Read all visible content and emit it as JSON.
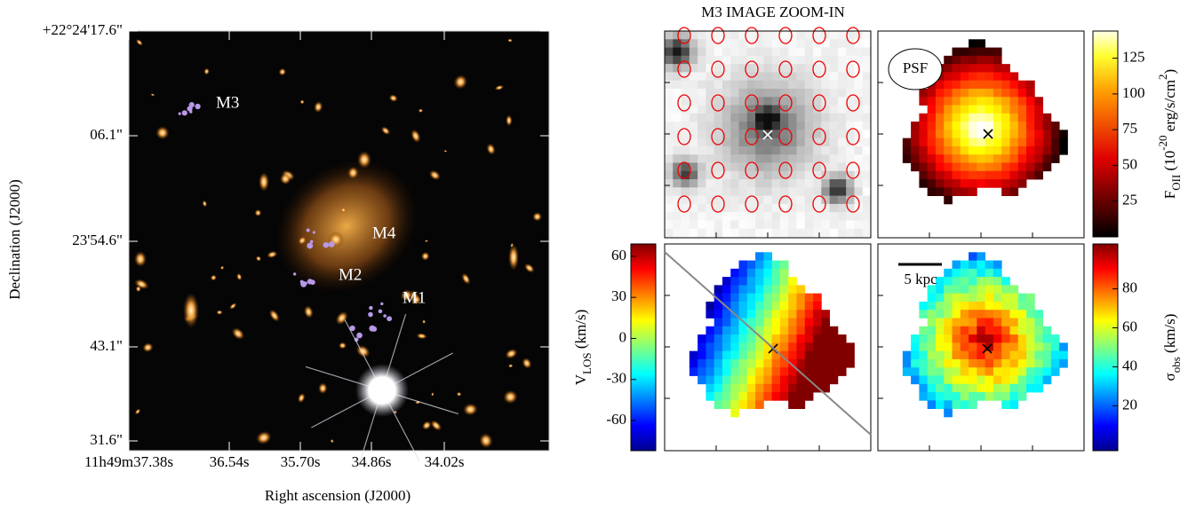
{
  "title": "M3 IMAGE ZOOM-IN",
  "sky_image": {
    "xlabel": "Right ascension (J2000)",
    "ylabel": "Declination (J2000)",
    "xticks": [
      "11h49m37.38s",
      "36.54s",
      "35.70s",
      "34.86s",
      "34.02s"
    ],
    "yticks": [
      "+22°24'17.6\"",
      "06.1\"",
      "23'54.6\"",
      "43.1\"",
      "31.6\""
    ],
    "labels": [
      "M3",
      "M4",
      "M2",
      "M1"
    ]
  },
  "flux_map": {
    "annotation": "PSF",
    "colorbar": {
      "label": [
        "F",
        "OII",
        " (10",
        "-20",
        " erg/s/cm",
        "2",
        ")"
      ],
      "lim": [
        0,
        144
      ],
      "ticks": [
        25,
        50,
        75,
        100,
        125
      ]
    }
  },
  "velocity_map": {
    "colorbar": {
      "label": [
        "V",
        "LOS",
        " (km/s)"
      ],
      "lim": [
        -82,
        69
      ],
      "ticks": [
        60,
        30,
        0,
        -30,
        -60
      ]
    }
  },
  "dispersion_map": {
    "annotation": "5 kpc",
    "colorbar": {
      "label": [
        "σ",
        "obs",
        " (km/s)"
      ],
      "lim": [
        -3,
        103
      ],
      "ticks": [
        20,
        40,
        60,
        80
      ]
    }
  }
}
